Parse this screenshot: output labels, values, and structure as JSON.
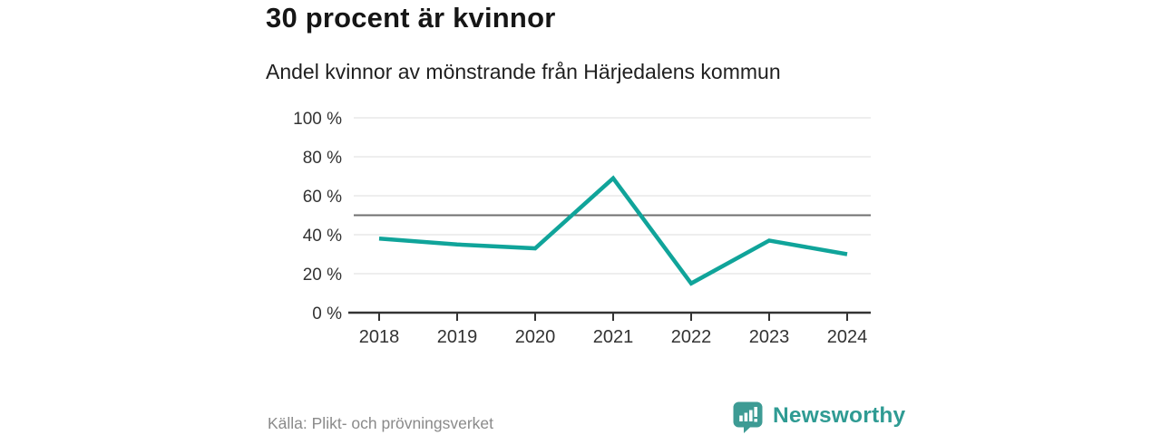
{
  "header": {
    "title": "30 procent är kvinnor",
    "subtitle": "Andel kvinnor av mönstrande från Härjedalens kommun"
  },
  "chart_data": {
    "type": "line",
    "title": "30 procent är kvinnor",
    "subtitle": "Andel kvinnor av mönstrande från Härjedalens kommun",
    "x": [
      "2018",
      "2019",
      "2020",
      "2021",
      "2022",
      "2023",
      "2024"
    ],
    "series": [
      {
        "name": "Andel kvinnor av mönstrande",
        "values": [
          38,
          35,
          33,
          69,
          15,
          37,
          30
        ]
      }
    ],
    "xlabel": "",
    "ylabel": "",
    "ylim": [
      0,
      100
    ],
    "yticks": [
      0,
      20,
      40,
      60,
      80,
      100
    ],
    "ytick_suffix": " %",
    "reference_line_y": 50,
    "grid": "horizontal",
    "legend": "none",
    "colors": {
      "line": "#10a49a",
      "reference_line": "#6f6f6f",
      "gridline": "#dddddd",
      "axis": "#333333",
      "tick_label": "#333333"
    }
  },
  "footer": {
    "source": "Källa: Plikt- och prövningsverket",
    "brand": "Newsworthy",
    "brand_color": "#2f9b93",
    "logo_icon": "bar-chart-speech-bubble-icon"
  }
}
